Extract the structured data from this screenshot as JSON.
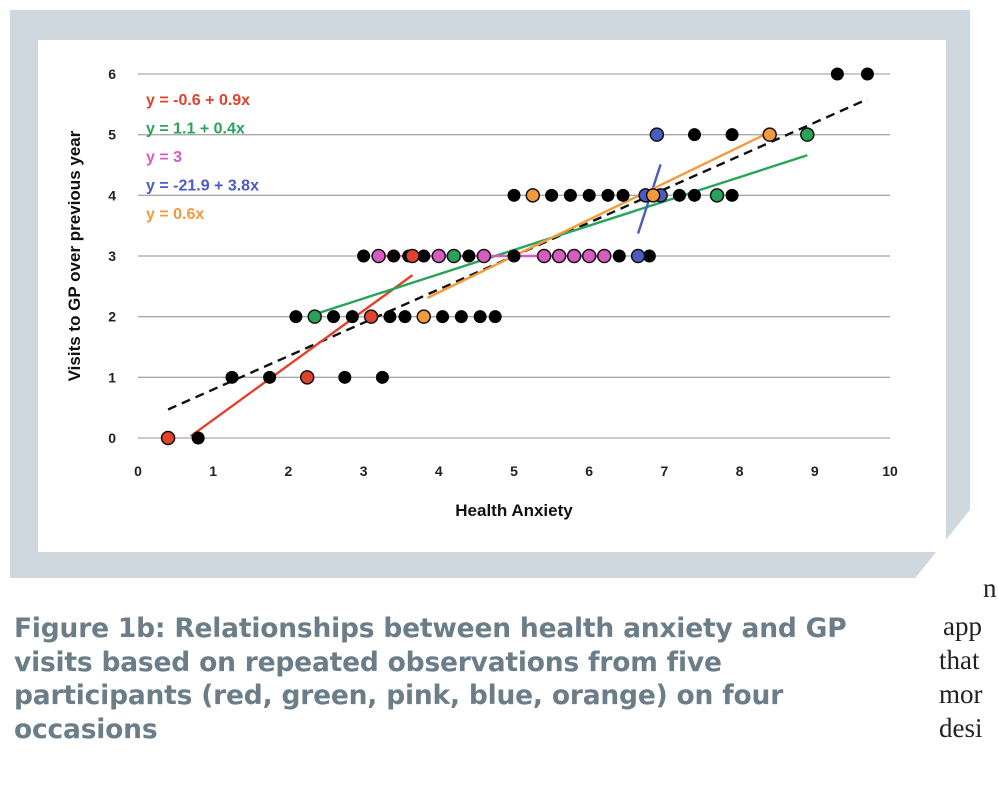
{
  "caption": "Figure 1b: Relationships between health anxiety and GP visits based on repeated observations from five participants (red, green, pink, blue, orange) on four occasions",
  "body_text_lines": [
    "n",
    "app",
    "that",
    "mor",
    "desi"
  ],
  "colors": {
    "red": "#e2412c",
    "green": "#28a35a",
    "pink": "#d65cc1",
    "blue": "#4a5bc2",
    "orange": "#f39a3c",
    "black": "#000000",
    "overall": "#111111"
  },
  "chart_data": {
    "type": "scatter",
    "xlabel": "Health Anxiety",
    "ylabel": "Visits to GP over previous year",
    "xlim": [
      0,
      10
    ],
    "ylim": [
      0,
      6
    ],
    "x_ticks": [
      "0",
      "1",
      "2",
      "3",
      "4",
      "5",
      "6",
      "7",
      "8",
      "9",
      "10"
    ],
    "y_ticks": [
      "0",
      "1",
      "2",
      "3",
      "4",
      "5",
      "6"
    ],
    "grid": "horizontal",
    "equations": [
      {
        "text": "y = -0.6 + 0.9x",
        "color": "red"
      },
      {
        "text": "y = 1.1 + 0.4x",
        "color": "green"
      },
      {
        "text": "y = 3",
        "color": "pink"
      },
      {
        "text": "y = -21.9 + 3.8x",
        "color": "blue"
      },
      {
        "text": "y = 0.6x",
        "color": "orange"
      }
    ],
    "black_points": [
      [
        0.8,
        0
      ],
      [
        1.25,
        1
      ],
      [
        1.75,
        1
      ],
      [
        2.75,
        1
      ],
      [
        3.25,
        1
      ],
      [
        2.1,
        2
      ],
      [
        2.6,
        2
      ],
      [
        2.85,
        2
      ],
      [
        3.1,
        2
      ],
      [
        3.35,
        2
      ],
      [
        3.55,
        2
      ],
      [
        4.05,
        2
      ],
      [
        4.3,
        2
      ],
      [
        4.55,
        2
      ],
      [
        4.75,
        2
      ],
      [
        3.0,
        3
      ],
      [
        3.4,
        3
      ],
      [
        3.6,
        3
      ],
      [
        3.8,
        3
      ],
      [
        4.2,
        3
      ],
      [
        4.4,
        3
      ],
      [
        5.0,
        3
      ],
      [
        6.4,
        3
      ],
      [
        6.8,
        3
      ],
      [
        5.0,
        4
      ],
      [
        5.5,
        4
      ],
      [
        5.75,
        4
      ],
      [
        6.0,
        4
      ],
      [
        6.25,
        4
      ],
      [
        6.45,
        4
      ],
      [
        7.2,
        4
      ],
      [
        7.4,
        4
      ],
      [
        7.9,
        4
      ],
      [
        7.4,
        5
      ],
      [
        7.9,
        5
      ],
      [
        9.3,
        6
      ],
      [
        9.7,
        6
      ]
    ],
    "series": [
      {
        "color": "red",
        "points": [
          [
            0.4,
            0
          ],
          [
            2.25,
            1
          ],
          [
            3.1,
            2
          ],
          [
            3.65,
            3
          ]
        ],
        "fit_x": [
          0.7,
          3.65
        ]
      },
      {
        "color": "green",
        "points": [
          [
            2.35,
            2
          ],
          [
            4.2,
            3
          ],
          [
            7.7,
            4
          ],
          [
            8.9,
            5
          ]
        ],
        "fit_x": [
          2.35,
          8.9
        ]
      },
      {
        "color": "pink",
        "points": [
          [
            3.2,
            3
          ],
          [
            4.0,
            3
          ],
          [
            4.6,
            3
          ],
          [
            5.4,
            3
          ],
          [
            5.6,
            3
          ],
          [
            5.8,
            3
          ],
          [
            6.0,
            3
          ],
          [
            6.2,
            3
          ]
        ],
        "fit_x": [
          3.2,
          6.2
        ]
      },
      {
        "color": "blue",
        "points": [
          [
            6.65,
            3
          ],
          [
            6.75,
            4
          ],
          [
            6.95,
            4
          ],
          [
            6.9,
            5
          ]
        ],
        "fit_x": [
          6.65,
          6.95
        ]
      },
      {
        "color": "orange",
        "points": [
          [
            3.8,
            2
          ],
          [
            5.25,
            4
          ],
          [
            6.85,
            4
          ],
          [
            8.4,
            5
          ]
        ],
        "fit_x": [
          3.85,
          8.45
        ]
      }
    ],
    "overall_fit": {
      "intercept": 0.25,
      "slope": 0.55,
      "x": [
        0.4,
        9.7
      ]
    }
  }
}
